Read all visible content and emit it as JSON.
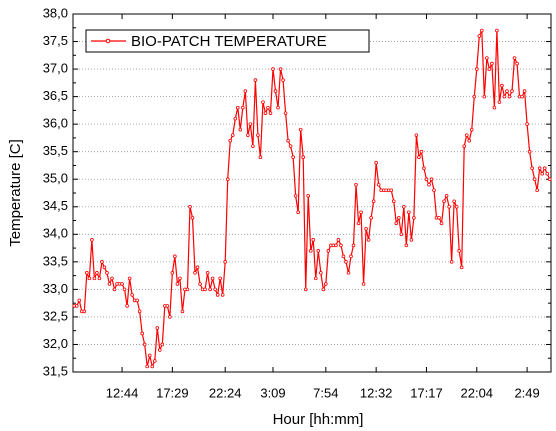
{
  "chart_data": {
    "type": "line",
    "xlabel": "Hour [hh:mm]",
    "ylabel": "Temperature [C]",
    "categories": [
      null,
      null,
      null,
      null,
      null,
      null,
      null,
      null,
      null,
      null,
      null,
      null,
      null,
      null,
      null,
      null,
      null,
      null,
      null,
      "12:44",
      null,
      null,
      null,
      null,
      null,
      null,
      null,
      null,
      null,
      null,
      null,
      null,
      null,
      null,
      null,
      null,
      null,
      null,
      null,
      "17:29",
      null,
      null,
      null,
      null,
      null,
      null,
      null,
      null,
      null,
      null,
      null,
      null,
      null,
      null,
      null,
      null,
      null,
      null,
      null,
      null,
      "22:24",
      null,
      null,
      null,
      null,
      null,
      null,
      null,
      null,
      null,
      null,
      null,
      null,
      null,
      null,
      null,
      null,
      null,
      null,
      "3:09",
      null,
      null,
      null,
      null,
      null,
      null,
      null,
      null,
      null,
      null,
      null,
      null,
      null,
      null,
      null,
      null,
      null,
      null,
      null,
      null,
      "7:54",
      null,
      null,
      null,
      null,
      null,
      null,
      null,
      null,
      null,
      null,
      null,
      null,
      null,
      null,
      null,
      null,
      null,
      null,
      null,
      "12:32",
      null,
      null,
      null,
      null,
      null,
      null,
      null,
      null,
      null,
      null,
      null,
      null,
      null,
      null,
      null,
      null,
      null,
      null,
      null,
      "17:17",
      null,
      null,
      null,
      null,
      null,
      null,
      null,
      null,
      null,
      null,
      null,
      null,
      null,
      null,
      null,
      null,
      null,
      null,
      null,
      "22:04",
      null,
      null,
      null,
      null,
      null,
      null,
      null,
      null,
      null,
      null,
      null,
      null,
      null,
      null,
      null,
      null,
      null,
      null,
      null,
      "2:49",
      null,
      null,
      null,
      null,
      null,
      null,
      null,
      null,
      null
    ],
    "series": [
      {
        "name": "BIO-PATCH TEMPERATURE",
        "color": "#ff0000",
        "values": [
          32.7,
          32.7,
          32.8,
          32.6,
          32.6,
          33.3,
          33.2,
          33.9,
          33.2,
          33.3,
          33.2,
          33.5,
          33.4,
          33.3,
          33.1,
          33.2,
          33.0,
          33.1,
          33.1,
          33.1,
          33.0,
          32.7,
          33.2,
          32.9,
          32.8,
          32.8,
          32.6,
          32.2,
          32.0,
          31.6,
          31.8,
          31.6,
          31.7,
          32.3,
          31.9,
          32.0,
          32.7,
          32.7,
          32.5,
          33.3,
          33.6,
          33.1,
          33.2,
          32.6,
          33.0,
          33.0,
          34.5,
          34.3,
          33.3,
          33.4,
          33.1,
          33.0,
          33.0,
          33.3,
          33.0,
          33.2,
          33.0,
          32.9,
          33.2,
          32.9,
          33.5,
          35.0,
          35.7,
          35.8,
          36.1,
          36.3,
          35.9,
          36.3,
          36.6,
          35.8,
          36.0,
          35.6,
          36.8,
          35.8,
          35.4,
          36.4,
          36.2,
          36.3,
          36.2,
          37.0,
          36.6,
          36.3,
          37.0,
          36.8,
          36.2,
          35.7,
          35.6,
          35.4,
          34.7,
          34.4,
          35.9,
          35.4,
          33.0,
          34.7,
          33.7,
          33.9,
          33.2,
          33.7,
          33.3,
          33.0,
          33.1,
          33.7,
          33.8,
          33.8,
          33.8,
          33.9,
          33.8,
          33.6,
          33.5,
          33.3,
          33.6,
          33.8,
          34.9,
          34.2,
          34.4,
          33.1,
          34.1,
          33.9,
          34.3,
          34.6,
          35.3,
          34.9,
          34.8,
          34.8,
          34.8,
          34.8,
          34.8,
          34.6,
          34.2,
          34.3,
          34.0,
          34.5,
          33.8,
          34.4,
          33.9,
          34.3,
          35.8,
          35.4,
          35.5,
          35.2,
          35.0,
          34.9,
          35.0,
          34.8,
          34.3,
          34.3,
          34.2,
          34.6,
          34.7,
          34.5,
          33.5,
          34.6,
          34.5,
          33.7,
          33.4,
          35.6,
          35.8,
          35.7,
          35.9,
          36.5,
          37.0,
          37.6,
          37.7,
          36.5,
          37.2,
          37.0,
          37.1,
          36.3,
          37.7,
          36.4,
          36.7,
          36.5,
          36.6,
          36.5,
          36.6,
          37.2,
          37.1,
          36.5,
          36.5,
          36.6,
          36.0,
          35.5,
          35.2,
          35.0,
          34.8,
          35.2,
          35.1,
          35.2,
          35.1,
          35.0
        ]
      }
    ],
    "ylim": [
      31.5,
      38.0
    ],
    "yticks": [
      {
        "value": 31.5,
        "label": "31,5"
      },
      {
        "value": 32,
        "label": "32,0"
      },
      {
        "value": 32.5,
        "label": "32,5"
      },
      {
        "value": 33,
        "label": "33,0"
      },
      {
        "value": 33.5,
        "label": "33,5"
      },
      {
        "value": 34,
        "label": "34,0"
      },
      {
        "value": 34.5,
        "label": "34,5"
      },
      {
        "value": 35,
        "label": "35,0"
      },
      {
        "value": 35.5,
        "label": "35,5"
      },
      {
        "value": 36,
        "label": "36,0"
      },
      {
        "value": 36.5,
        "label": "36,5"
      },
      {
        "value": 37,
        "label": "37,0"
      },
      {
        "value": 37.5,
        "label": "37,5"
      },
      {
        "value": 38,
        "label": "38,0"
      }
    ],
    "grid": true,
    "legend": "upper left"
  }
}
